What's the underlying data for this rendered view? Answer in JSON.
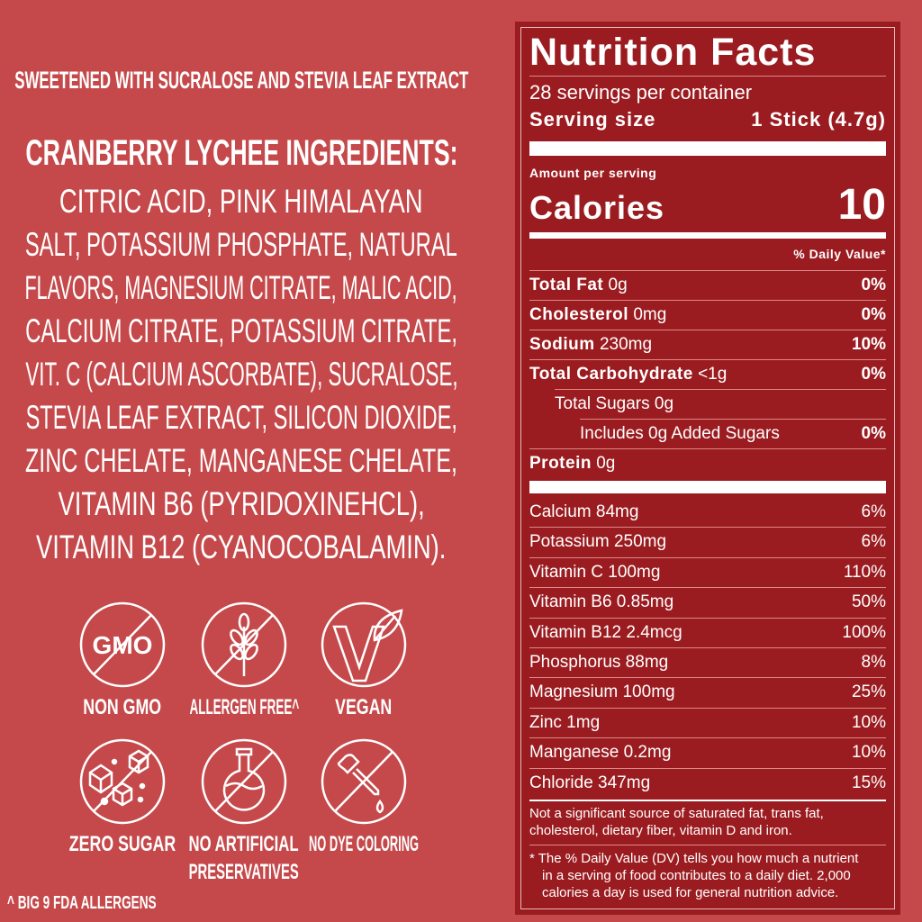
{
  "left": {
    "sweetener_note": "SWEETENED WITH SUCRALOSE AND STEVIA LEAF EXTRACT",
    "ingredients_heading": "CRANBERRY LYCHEE INGREDIENTS:",
    "ingredients_lines": [
      "CITRIC ACID, PINK HIMALAYAN",
      "SALT, POTASSIUM PHOSPHATE, NATURAL",
      "FLAVORS, MAGNESIUM CITRATE, MALIC ACID,",
      "CALCIUM CITRATE, POTASSIUM CITRATE,",
      "VIT. C (CALCIUM ASCORBATE), SUCRALOSE,",
      "STEVIA LEAF EXTRACT, SILICON DIOXIDE,",
      "ZINC CHELATE, MANGANESE CHELATE,",
      "VITAMIN B6 (PYRIDOXINEHCL),",
      "VITAMIN B12 (CYANOCOBALAMIN)."
    ],
    "badges": [
      {
        "icon": "no-gmo-icon",
        "icon_text": "GMO",
        "label": "NON GMO"
      },
      {
        "icon": "no-wheat-icon",
        "label": "ALLERGEN FREE^"
      },
      {
        "icon": "vegan-icon",
        "label": "VEGAN"
      },
      {
        "icon": "no-sugar-cubes-icon",
        "label": "ZERO SUGAR"
      },
      {
        "icon": "no-flask-icon",
        "label": "NO ARTIFICIAL",
        "label2": "PRESERVATIVES"
      },
      {
        "icon": "no-dropper-icon",
        "label": "NO DYE COLORING"
      }
    ],
    "footnote": "^ BIG 9 FDA ALLERGENS"
  },
  "label": {
    "title": "Nutrition Facts",
    "servings": "28 servings per container",
    "serving_size_label": "Serving size",
    "serving_size_value": "1 Stick (4.7g)",
    "amount_per_serving": "Amount per serving",
    "calories_label": "Calories",
    "calories_value": "10",
    "dv_header": "% Daily Value*",
    "nutrients": [
      {
        "name": "Total Fat",
        "amount": "0g",
        "dv": "0%"
      },
      {
        "name": "Cholesterol",
        "amount": "0mg",
        "dv": "0%"
      },
      {
        "name": "Sodium",
        "amount": "230mg",
        "dv": "10%"
      },
      {
        "name": "Total Carbohydrate",
        "amount": "<1g",
        "dv": "0%"
      },
      {
        "name": "Total Sugars 0g",
        "amount": "",
        "dv": ""
      },
      {
        "name": "Includes 0g Added Sugars",
        "amount": "",
        "dv": "0%"
      },
      {
        "name": "Protein",
        "amount": "0g",
        "dv": ""
      }
    ],
    "vitamins": [
      {
        "name": "Calcium 84mg",
        "dv": "6%"
      },
      {
        "name": "Potassium 250mg",
        "dv": "6%"
      },
      {
        "name": "Vitamin C 100mg",
        "dv": "110%"
      },
      {
        "name": "Vitamin B6 0.85mg",
        "dv": "50%"
      },
      {
        "name": "Vitamin B12 2.4mcg",
        "dv": "100%"
      },
      {
        "name": "Phosphorus 88mg",
        "dv": "8%"
      },
      {
        "name": "Magnesium 100mg",
        "dv": "25%"
      },
      {
        "name": "Zinc 1mg",
        "dv": "10%"
      },
      {
        "name": "Manganese 0.2mg",
        "dv": "10%"
      },
      {
        "name": "Chloride 347mg",
        "dv": "15%"
      }
    ],
    "not_significant": [
      "Not a significant source of saturated fat, trans fat,",
      "cholesterol, dietary fiber, vitamin D and iron."
    ],
    "dv_footnote": [
      "*  The % Daily Value (DV) tells you how much a nutrient",
      "in a serving of food contributes to a daily diet. 2,000",
      "calories a day is used for general nutrition advice."
    ]
  },
  "colors": {
    "background": "#c5494b",
    "panel": "#9b1c20",
    "text": "#ffffff"
  }
}
